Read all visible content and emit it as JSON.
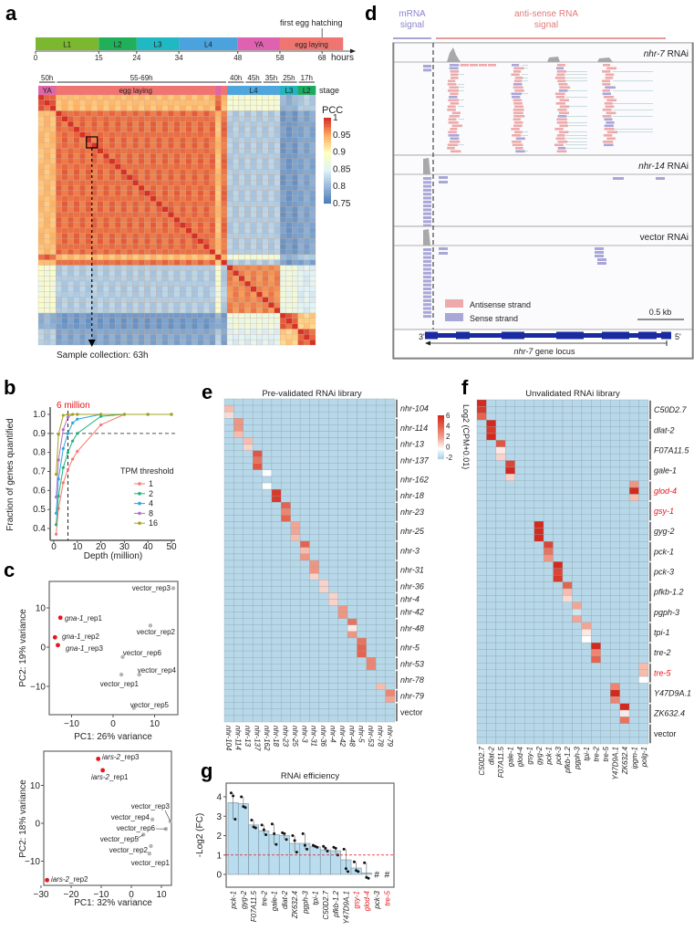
{
  "panel_labels": {
    "a": "a",
    "b": "b",
    "c": "c",
    "d": "d",
    "e": "e",
    "f": "f",
    "g": "g"
  },
  "timeline": {
    "annotation": "first egg hatching",
    "unit_label": "hours",
    "stages": [
      {
        "label": "L1",
        "start": 0,
        "end": 15,
        "color": "#7cb82f"
      },
      {
        "label": "L2",
        "start": 15,
        "end": 24,
        "color": "#21b05a"
      },
      {
        "label": "L3",
        "start": 24,
        "end": 34,
        "color": "#1fb8c3"
      },
      {
        "label": "L4",
        "start": 34,
        "end": 48,
        "color": "#4aa3dd"
      },
      {
        "label": "YA",
        "start": 48,
        "end": 58,
        "color": "#df62b0"
      },
      {
        "label": "egg laying",
        "start": 58,
        "end": 73,
        "color": "#ef7670"
      }
    ],
    "ticks": [
      "0",
      "15",
      "24",
      "34",
      "48",
      "58",
      "68"
    ],
    "tick_values": [
      0,
      15,
      24,
      34,
      48,
      58,
      68
    ],
    "hatching_hour": 68
  },
  "chart_data": [
    {
      "id": "a-heatmap",
      "type": "heatmap",
      "stage_row_label": "stage",
      "legend_title": "PCC",
      "legend_ticks": [
        "1",
        "0.95",
        "0.9",
        "0.85",
        "0.8",
        "0.75"
      ],
      "legend_tick_values": [
        1,
        0.95,
        0.9,
        0.85,
        0.8,
        0.75
      ],
      "range": [
        0.75,
        1
      ],
      "time_headers": [
        "50h",
        "55-69h",
        "40h",
        "45h",
        "35h",
        "25h",
        "17h"
      ],
      "sample_stages": [
        "YA",
        "YA",
        "YA",
        "egg laying",
        "egg laying",
        "egg laying",
        "egg laying",
        "egg laying",
        "egg laying",
        "egg laying",
        "egg laying",
        "egg laying",
        "egg laying",
        "egg laying",
        "egg laying",
        "egg laying",
        "egg laying",
        "egg laying",
        "egg laying",
        "egg laying",
        "egg laying",
        "egg laying",
        "egg laying",
        "egg laying",
        "egg laying",
        "egg laying",
        "egg laying",
        "egg laying",
        "egg laying",
        "egg laying",
        "YA",
        "egg laying",
        "L4",
        "L4",
        "L4",
        "L4",
        "L4",
        "L4",
        "L4",
        "L4",
        "L4",
        "L3",
        "L3",
        "L3",
        "L2",
        "L2",
        "L2"
      ],
      "stage_colors": {
        "YA": "#e066aa",
        "egg laying": "#f07470",
        "L4": "#4da6de",
        "L3": "#22b5c0",
        "L2": "#1aaa60"
      },
      "block_mean_pcc": {
        "order": [
          "YA",
          "egg laying",
          "L4",
          "L3",
          "L2"
        ],
        "values": [
          [
            0.98,
            0.94,
            0.88,
            0.8,
            0.82
          ],
          [
            0.94,
            0.975,
            0.82,
            0.78,
            0.79
          ],
          [
            0.88,
            0.82,
            0.965,
            0.87,
            0.85
          ],
          [
            0.8,
            0.78,
            0.87,
            0.98,
            0.93
          ],
          [
            0.82,
            0.79,
            0.85,
            0.93,
            0.98
          ]
        ]
      },
      "highlighted_sample_index": 8,
      "annotation": "Sample collection: 63h"
    },
    {
      "id": "b-saturation",
      "type": "line",
      "xlabel": "Depth (million)",
      "ylabel": "Fraction of genes quantified",
      "xlim": [
        0,
        52
      ],
      "ylim": [
        0.35,
        1.03
      ],
      "xticks": [
        "0",
        "10",
        "20",
        "30",
        "40",
        "50"
      ],
      "yticks": [
        "0.4",
        "0.5",
        "0.6",
        "0.7",
        "0.8",
        "0.9",
        "1.0"
      ],
      "reference_x": 6,
      "reference_x_label": "6 million",
      "reference_y": 0.9,
      "legend_title": "TPM threshold",
      "x": [
        1,
        2,
        4,
        6,
        8,
        10,
        20,
        30,
        40,
        50
      ],
      "series": [
        {
          "name": "1",
          "color": "#f8766d",
          "values": [
            0.37,
            0.505,
            0.64,
            0.71,
            0.765,
            0.805,
            0.945,
            1.0,
            1.0,
            1.0
          ]
        },
        {
          "name": "2",
          "color": "#1db27a",
          "values": [
            0.42,
            0.57,
            0.72,
            0.8,
            0.86,
            0.9,
            0.99,
            1.0,
            1.0,
            1.0
          ]
        },
        {
          "name": "4",
          "color": "#2aa6e0",
          "values": [
            0.48,
            0.66,
            0.82,
            0.9,
            0.955,
            0.975,
            1.0,
            1.0,
            1.0,
            1.0
          ]
        },
        {
          "name": "8",
          "color": "#b46ec4",
          "values": [
            0.565,
            0.76,
            0.92,
            0.985,
            1.0,
            1.0,
            1.0,
            1.0,
            1.0,
            1.0
          ]
        },
        {
          "name": "16",
          "color": "#a3a520",
          "values": [
            0.685,
            0.895,
            0.995,
            1.0,
            1.0,
            1.0,
            1.0,
            1.0,
            1.0,
            1.0
          ]
        }
      ]
    },
    {
      "id": "c-pca-gna1",
      "type": "scatter",
      "xlabel": "PC1: 26% variance",
      "ylabel": "PC2: 19% variance",
      "xlim": [
        -15.5,
        15.5
      ],
      "ylim": [
        -17,
        17
      ],
      "xticks": [
        -10,
        0,
        10
      ],
      "yticks": [
        -10,
        0,
        10
      ],
      "points": [
        {
          "label": "gna-1_rep1",
          "x": -12.7,
          "y": 7.5,
          "color": "#e8141b"
        },
        {
          "label": "gna-1_rep2",
          "x": -14,
          "y": 2.5,
          "color": "#e8141b"
        },
        {
          "label": "gna-1_rep3",
          "x": -13.3,
          "y": 0.5,
          "color": "#e8141b"
        },
        {
          "label": "vector_rep3",
          "x": 14.5,
          "y": 15,
          "color": "#b5b5b5"
        },
        {
          "label": "vector_rep2",
          "x": 9,
          "y": 5.5,
          "color": "#b5b5b5"
        },
        {
          "label": "vector_rep6",
          "x": 2.3,
          "y": -2.5,
          "color": "#b5b5b5"
        },
        {
          "label": "vector_rep4",
          "x": 6.3,
          "y": -7,
          "color": "#b5b5b5"
        },
        {
          "label": "vector_rep1",
          "x": 2,
          "y": -7,
          "color": "#b5b5b5"
        },
        {
          "label": "vector_rep5",
          "x": 5,
          "y": -15.5,
          "color": "#b5b5b5"
        }
      ]
    },
    {
      "id": "c-pca-iars2",
      "type": "scatter",
      "xlabel": "PC1: 32% variance",
      "ylabel": "PC2: 18% variance",
      "xlim": [
        -30,
        15
      ],
      "ylim": [
        -17,
        20
      ],
      "xticks": [
        -30,
        -20,
        -10,
        0,
        10
      ],
      "yticks": [
        -10,
        0,
        10
      ],
      "points": [
        {
          "label": "iars-2_rep3",
          "x": -11,
          "y": 17,
          "color": "#e8141b"
        },
        {
          "label": "iars-2_rep1",
          "x": -9.5,
          "y": 14,
          "color": "#e8141b"
        },
        {
          "label": "iars-2_rep2",
          "x": -28,
          "y": -15,
          "color": "#e8141b"
        },
        {
          "label": "vector_rep3",
          "x": 13,
          "y": 0.5,
          "color": "#b5b5b5"
        },
        {
          "label": "vector_rep4",
          "x": 7,
          "y": 1,
          "color": "#b5b5b5"
        },
        {
          "label": "vector_rep6",
          "x": 11.5,
          "y": -1.5,
          "color": "#b5b5b5"
        },
        {
          "label": "vector_rep5",
          "x": 4,
          "y": -3,
          "color": "#b5b5b5"
        },
        {
          "label": "vector_rep2",
          "x": 6.5,
          "y": -6,
          "color": "#b5b5b5"
        },
        {
          "label": "vector_rep1",
          "x": 6,
          "y": -8,
          "color": "#b5b5b5"
        }
      ]
    },
    {
      "id": "e-heatmap",
      "type": "heatmap",
      "title": "Pre-validated RNAi library",
      "legend_title": "Log2 (CPM+0.01)",
      "legend_ticks": [
        "6",
        "4",
        "2",
        "0",
        "-2"
      ],
      "range": [
        -2,
        6
      ],
      "background_value": -1.5,
      "columns": [
        "nhr-104",
        "nhr-114",
        "nhr-13",
        "nhr-137",
        "nhr-162",
        "nhr-18",
        "nhr-23",
        "nhr-25",
        "nhr-3",
        "nhr-31",
        "nhr-36",
        "nhr-4",
        "nhr-42",
        "nhr-48",
        "nhr-5",
        "nhr-53",
        "nhr-78",
        "nhr-79"
      ],
      "rows": [
        {
          "gene": "nhr-104",
          "target": "nhr-104",
          "values": [
            -1.5,
            1.5,
            0.8
          ]
        },
        {
          "gene": "nhr-114",
          "target": "nhr-114",
          "values": [
            2.5,
            2.5,
            1.5
          ]
        },
        {
          "gene": "nhr-13",
          "target": "nhr-13",
          "values": [
            1.5,
            1
          ]
        },
        {
          "gene": "nhr-137",
          "target": "nhr-137",
          "values": [
            4.5,
            3.5,
            4.5
          ]
        },
        {
          "gene": "nhr-162",
          "target": "nhr-162",
          "values": [
            0,
            -1.5,
            0
          ]
        },
        {
          "gene": "nhr-18",
          "target": "nhr-18",
          "values": [
            5.5,
            5.5
          ]
        },
        {
          "gene": "nhr-23",
          "target": "nhr-23",
          "values": [
            4,
            3,
            4
          ]
        },
        {
          "gene": "nhr-25",
          "target": "nhr-25",
          "values": [
            2,
            2,
            1.5
          ]
        },
        {
          "gene": "nhr-3",
          "target": "nhr-3",
          "values": [
            4,
            1.5,
            2.5
          ]
        },
        {
          "gene": "nhr-31",
          "target": "nhr-31",
          "values": [
            2.5,
            2.5,
            1
          ]
        },
        {
          "gene": "nhr-36",
          "target": "nhr-36",
          "values": [
            1,
            1
          ]
        },
        {
          "gene": "nhr-4",
          "target": "nhr-4",
          "values": [
            1,
            1
          ]
        },
        {
          "gene": "nhr-42",
          "target": "nhr-42",
          "values": [
            2.5,
            2.5
          ]
        },
        {
          "gene": "nhr-48",
          "target": "nhr-48",
          "values": [
            3.5,
            0.5,
            2.5
          ]
        },
        {
          "gene": "nhr-5",
          "target": "nhr-5",
          "values": [
            3.5,
            4,
            4
          ]
        },
        {
          "gene": "nhr-53",
          "target": "nhr-53",
          "values": [
            3,
            3
          ]
        },
        {
          "gene": "nhr-78",
          "target": "nhr-78",
          "values": [
            -1.5,
            -1.5,
            1.5
          ]
        },
        {
          "gene": "nhr-79",
          "target": "nhr-79",
          "values": [
            3,
            2
          ]
        },
        {
          "gene": "vector",
          "target": null,
          "values": [
            -1.5,
            -1.5,
            -1.5
          ]
        }
      ]
    },
    {
      "id": "f-heatmap",
      "type": "heatmap",
      "title": "Unvalidated RNAi library",
      "range": [
        -2,
        6
      ],
      "background_value": -1.5,
      "columns": [
        "C50D2.7",
        "dlat-2",
        "F07A11.5",
        "gale-1",
        "glod-4",
        "gsy-1",
        "gyg-2",
        "pck-1",
        "pck-3",
        "pfkb-1.2",
        "pgph-3",
        "tpi-1",
        "tre-2",
        "tre-5",
        "Y47D9A.1",
        "ZK632.4",
        "ipgm-1",
        "polg-1"
      ],
      "highlight_color": "#e8141b",
      "rows": [
        {
          "gene": "C50D2.7",
          "target": "C50D2.7",
          "values": [
            6,
            5.5,
            4
          ]
        },
        {
          "gene": "dlat-2",
          "target": "dlat-2",
          "values": [
            6,
            5.5,
            6
          ]
        },
        {
          "gene": "F07A11.5",
          "target": "F07A11.5",
          "values": [
            4.5,
            0.5,
            1
          ]
        },
        {
          "gene": "gale-1",
          "target": "gale-1",
          "values": [
            5,
            6,
            1
          ]
        },
        {
          "gene": "glod-4",
          "target": "ipgm-1",
          "values": [
            2.5,
            6,
            1.5
          ],
          "highlight": true
        },
        {
          "gene": "gsy-1",
          "target": null,
          "values": [
            -1.5,
            -1.5,
            -1.5
          ],
          "highlight": true
        },
        {
          "gene": "gyg-2",
          "target": "gyg-2",
          "values": [
            6,
            6,
            6
          ]
        },
        {
          "gene": "pck-1",
          "target": "pck-1",
          "values": [
            5,
            3.5,
            2.5
          ]
        },
        {
          "gene": "pck-3",
          "target": "pck-3",
          "values": [
            6,
            5,
            5.5
          ]
        },
        {
          "gene": "pfkb-1.2",
          "target": "pfkb-1.2",
          "values": [
            4,
            1.5,
            0.8
          ]
        },
        {
          "gene": "pgph-3",
          "target": "pgph-3",
          "values": [
            2,
            -1,
            2
          ]
        },
        {
          "gene": "tpi-1",
          "target": "tpi-1",
          "values": [
            2,
            0.5,
            0
          ]
        },
        {
          "gene": "tre-2",
          "target": "tre-2",
          "values": [
            6,
            3,
            4
          ]
        },
        {
          "gene": "tre-5",
          "target": "polg-1",
          "values": [
            1.5,
            1.5,
            0
          ],
          "highlight": true
        },
        {
          "gene": "Y47D9A.1",
          "target": "Y47D9A.1",
          "values": [
            3,
            6,
            3
          ]
        },
        {
          "gene": "ZK632.4",
          "target": "ZK632.4",
          "values": [
            6,
            0.5,
            3.5
          ]
        },
        {
          "gene": "vector",
          "target": null,
          "values": [
            -1.5,
            -1.5,
            -1.5
          ]
        }
      ]
    },
    {
      "id": "g-bar",
      "type": "bar",
      "title": "RNAi efficiency",
      "ylabel": "-Log2 (FC)",
      "ylim": [
        -0.6,
        4.5
      ],
      "yticks": [
        "0",
        "1",
        "2",
        "3",
        "4"
      ],
      "reference_y": 1,
      "bar_color": "#b9ddef",
      "categories": [
        "pck-1",
        "gyg-2",
        "F07A11.5",
        "tre-2",
        "gale-1",
        "dlat-2",
        "ZK632.4",
        "pgph-3",
        "tpi-1",
        "C50D2.7",
        "pfkb-1.2",
        "Y47D9A.1",
        "gsy-1",
        "glod-4",
        "pck-3",
        "tre-5"
      ],
      "highlighted": [
        "gsy-1",
        "glod-4",
        "tre-5"
      ],
      "values": [
        3.7,
        3.65,
        2.55,
        2.25,
        2.05,
        2.0,
        1.6,
        1.6,
        1.42,
        1.27,
        1.22,
        0.75,
        0.33,
        0.08,
        null,
        null
      ],
      "replicates": [
        [
          4.2,
          4.05,
          2.85
        ],
        [
          4.0,
          3.5,
          3.45
        ],
        [
          2.8,
          2.45,
          2.4
        ],
        [
          2.55,
          2.3,
          2.05
        ],
        [
          2.6,
          2.1,
          1.55
        ],
        [
          2.15,
          2.1,
          1.8
        ],
        [
          2.0,
          1.75,
          1.15
        ],
        [
          2.1,
          1.5,
          1.3
        ],
        [
          1.5,
          1.45,
          1.4
        ],
        [
          1.45,
          1.35,
          1.2
        ],
        [
          1.4,
          1.35,
          1.0
        ],
        [
          1.3,
          0.3,
          0.15
        ],
        [
          0.65,
          0.2,
          0.15
        ],
        [
          0.6,
          -0.15,
          -0.2
        ],
        null,
        null
      ],
      "not_detected_marker": "#"
    }
  ],
  "browser": {
    "mrna_label_1": "mRNA",
    "mrna_label_2": "signal",
    "antisense_label_1": "anti-sense RNA",
    "antisense_label_2": "signal",
    "mrna_color": "#8a85cc",
    "antisense_color": "#e07a7a",
    "tracks": [
      {
        "gene": "nhr-7",
        "suffix": " RNAi"
      },
      {
        "gene": "nhr-14",
        "suffix": " RNAi"
      },
      {
        "gene": "",
        "suffix": "vector RNAi"
      }
    ],
    "legend": [
      {
        "label": "Antisense strand",
        "color": "#eeaaaa"
      },
      {
        "label": "Sense strand",
        "color": "#a9a6d8"
      }
    ],
    "scale_bar": "0.5 kb",
    "locus_left": "3'",
    "locus_right": "5'",
    "locus_gene": "nhr-7",
    "locus_suffix": " gene locus"
  }
}
